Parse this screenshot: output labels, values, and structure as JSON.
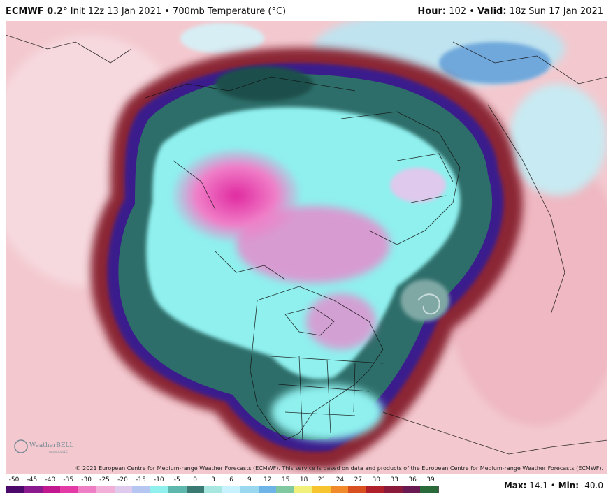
{
  "header": {
    "model": "ECMWF 0.2°",
    "init": "Init 12z 13 Jan 2021 • 700mb Temperature (°C)",
    "hour_label": "Hour:",
    "hour_value": "102",
    "valid_label": "Valid:",
    "valid_value": "18z Sun 17 Jan 2021"
  },
  "map": {
    "copyright": "© 2021 European Centre for Medium-range Weather Forecasts (ECMWF). This service is based on data and products of the European Centre for Medium-range Weather Forecasts (ECMWF).",
    "logo_text": "WeatherBELL",
    "logo_subtext": "Analytics LLC",
    "colors": {
      "warm_outer": "#f3c9cf",
      "dark_red": "#8b2635",
      "purple": "#3a1a8c",
      "teal_dark": "#2e6e6a",
      "cyan": "#8ff0ee",
      "pink": "#f07fc8",
      "magenta": "#e02aa0"
    }
  },
  "legend": {
    "ticks": [
      "-50",
      "-45",
      "-40",
      "-35",
      "-30",
      "-25",
      "-20",
      "-15",
      "-10",
      "-5",
      "0",
      "3",
      "6",
      "9",
      "12",
      "15",
      "18",
      "21",
      "24",
      "27",
      "30",
      "33",
      "36",
      "39"
    ],
    "colors": [
      "#4b0a6b",
      "#8a1a8e",
      "#c2188f",
      "#e33aa6",
      "#ef7fc4",
      "#f2b0d8",
      "#dfc9ec",
      "#b5c6f0",
      "#8ff0ee",
      "#5fb8ae",
      "#3a7a72",
      "#a8e6e0",
      "#c8f2ff",
      "#9ad8f0",
      "#6fb4e6",
      "#80c8a0",
      "#f0f07a",
      "#f7c430",
      "#f08a2a",
      "#d95020",
      "#b0202a",
      "#8b1a3a",
      "#6a1a52",
      "#2a6a3a"
    ],
    "max_label": "Max:",
    "max_value": "14.1",
    "min_label": "Min:",
    "min_value": "-40.0"
  }
}
